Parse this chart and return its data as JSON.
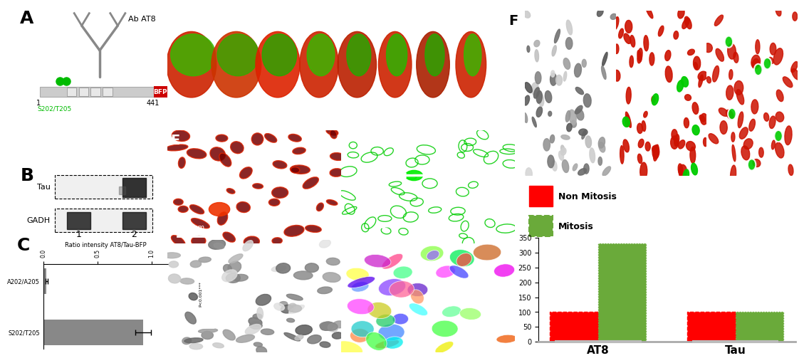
{
  "fig_width": 11.09,
  "fig_height": 4.95,
  "bg_color": "#ffffff",
  "panel_A": {
    "label": "A",
    "antibody_label": "Ab AT8",
    "protein_label1": "1",
    "protein_label2": "441",
    "site_label": "S202/T205",
    "bfp_label": "BFP",
    "bfp_color": "#cc0000",
    "site_color": "#00bb00",
    "bar_color": "#cccccc"
  },
  "panel_B": {
    "label": "B",
    "row1_label": "Tau",
    "row2_label": "GADH",
    "col1_label": "1",
    "col2_label": "2"
  },
  "panel_C": {
    "label": "C",
    "title": "Ratio intensity AT8/Tau-BFP",
    "categories": [
      "S202/T205",
      "A202/A205"
    ],
    "values": [
      0.92,
      0.03
    ],
    "errors": [
      0.07,
      0.01
    ],
    "bar_color": "#888888",
    "xlim": [
      0,
      1.15
    ],
    "xticks": [
      0.0,
      0.5,
      1.0
    ],
    "pvalue_label": "P<0.001***"
  },
  "panel_F_bar": {
    "label": "F",
    "groups": [
      "AT8",
      "Tau"
    ],
    "non_mitosis_values": [
      100,
      100
    ],
    "mitosis_values": [
      330,
      100
    ],
    "non_mitosis_color": "#ff0000",
    "mitosis_color": "#6aaa3a",
    "ylim": [
      0,
      350
    ],
    "yticks": [
      0,
      50,
      100,
      150,
      200,
      250,
      300,
      350
    ],
    "legend_non_mitosis": "Non Mitosis",
    "legend_mitosis": "Mitosis",
    "bar_width": 0.35
  }
}
